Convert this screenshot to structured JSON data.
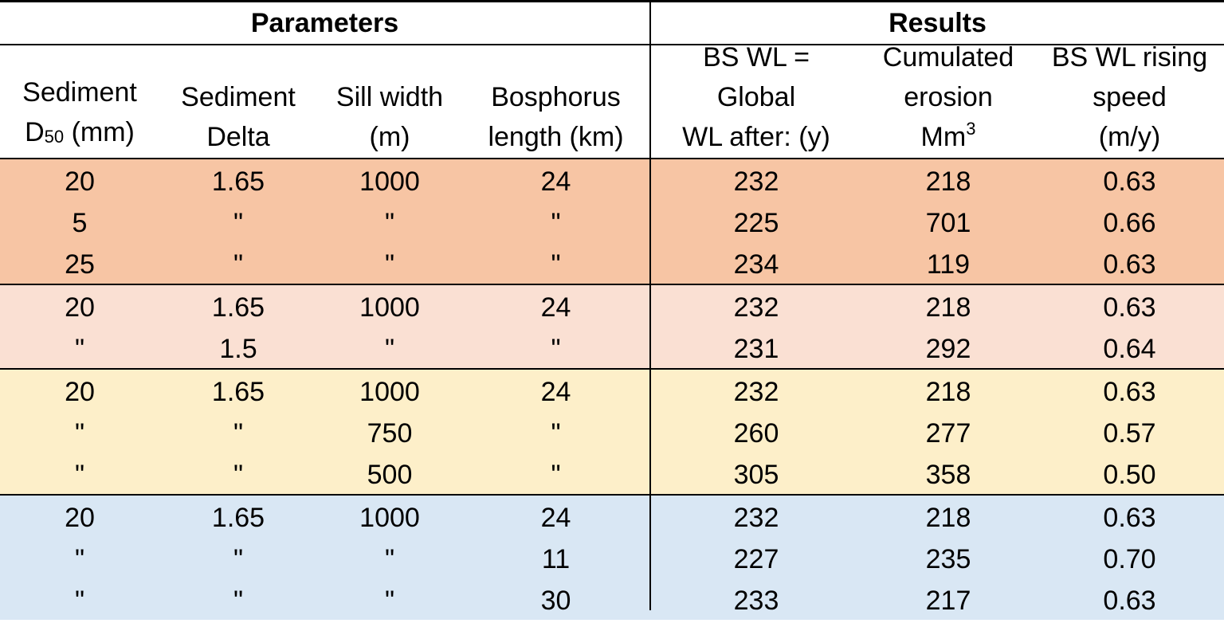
{
  "headers": {
    "parameters": "Parameters",
    "results": "Results",
    "sediment_d50": [
      "Sediment",
      "D",
      "50",
      " (mm)"
    ],
    "sediment_delta": [
      "Sediment",
      "Delta"
    ],
    "sill_width": [
      "Sill width",
      "(m)"
    ],
    "bosphorus_length": [
      "Bosphorus",
      "length (km)"
    ],
    "bs_wl": [
      "BS WL =",
      "Global",
      "WL after: (y)"
    ],
    "cumulated_erosion": [
      "Cumulated",
      "erosion",
      "Mm",
      "3"
    ],
    "rising_speed": [
      "BS WL rising",
      "speed",
      "(m/y)"
    ]
  },
  "groups": [
    {
      "color": "#f7c5a4",
      "rows": [
        [
          "20",
          "1.65",
          "1000",
          "24",
          "232",
          "218",
          "0.63"
        ],
        [
          "5",
          "\"",
          "\"",
          "\"",
          "225",
          "701",
          "0.66"
        ],
        [
          "25",
          "\"",
          "\"",
          "\"",
          "234",
          "119",
          "0.63"
        ]
      ]
    },
    {
      "color": "#fae0d3",
      "rows": [
        [
          "20",
          "1.65",
          "1000",
          "24",
          "232",
          "218",
          "0.63"
        ],
        [
          "\"",
          "1.5",
          "\"",
          "\"",
          "231",
          "292",
          "0.64"
        ]
      ]
    },
    {
      "color": "#fdefc9",
      "rows": [
        [
          "20",
          "1.65",
          "1000",
          "24",
          "232",
          "218",
          "0.63"
        ],
        [
          "\"",
          "\"",
          "750",
          "\"",
          "260",
          "277",
          "0.57"
        ],
        [
          "\"",
          "\"",
          "500",
          "\"",
          "305",
          "358",
          "0.50"
        ]
      ]
    },
    {
      "color": "#d9e7f4",
      "rows": [
        [
          "20",
          "1.65",
          "1000",
          "24",
          "232",
          "218",
          "0.63"
        ],
        [
          "\"",
          "\"",
          "\"",
          "11",
          "227",
          "235",
          "0.70"
        ],
        [
          "\"",
          "\"",
          "\"",
          "30",
          "233",
          "217",
          "0.63"
        ]
      ]
    }
  ]
}
